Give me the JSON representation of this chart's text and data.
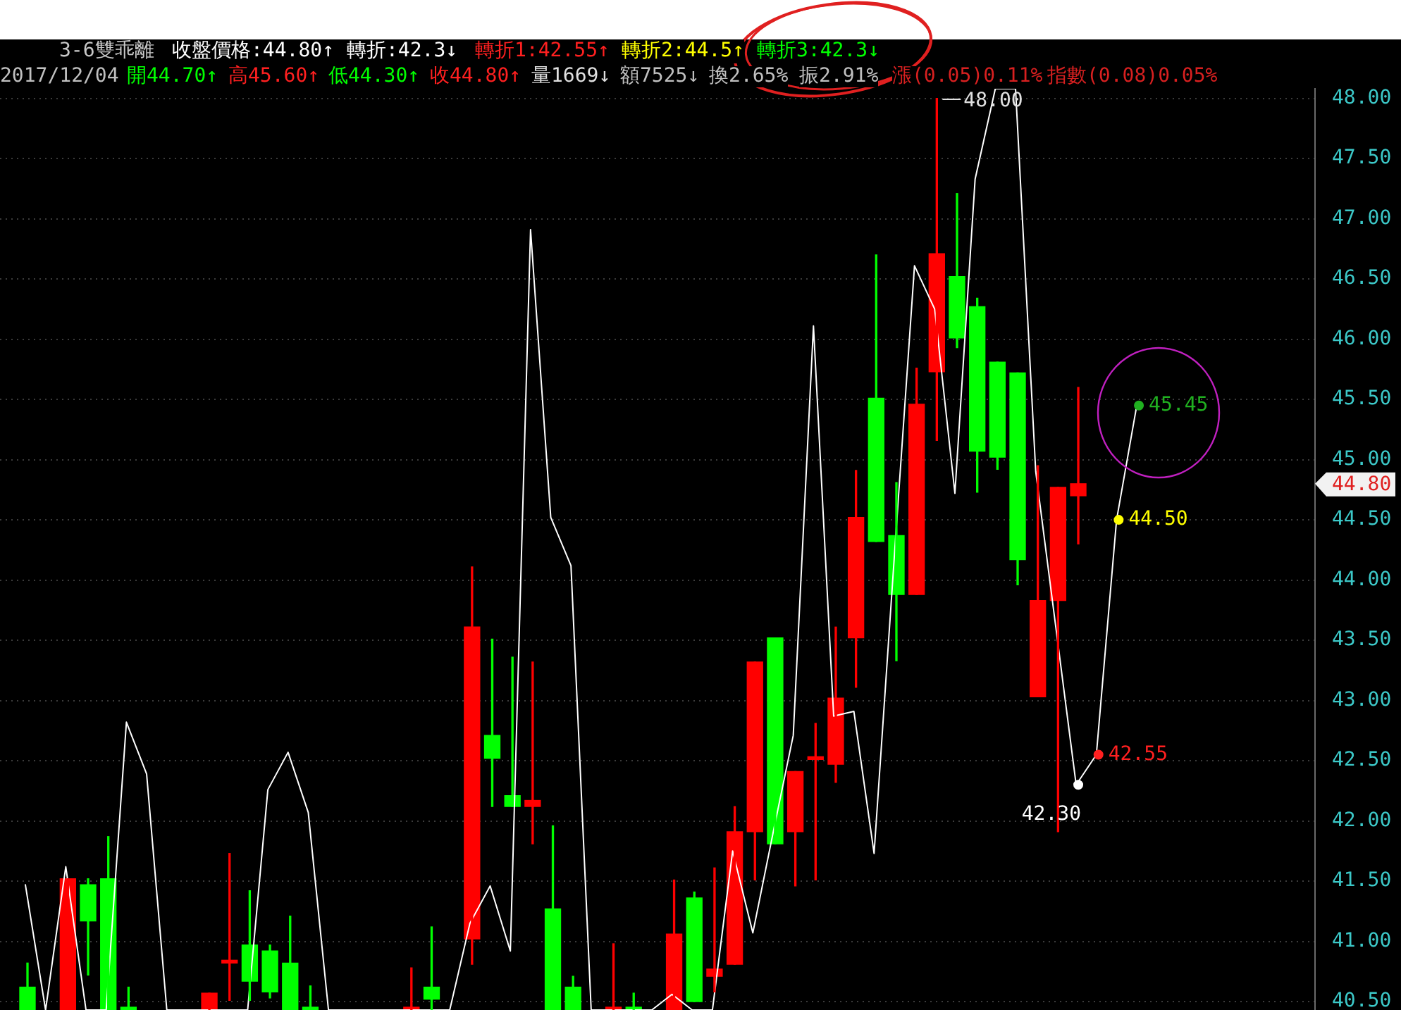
{
  "chart_data": {
    "type": "candlestick",
    "title": "3-6雙乖離",
    "annotations": [
      "收盤價格:44.80↑",
      "轉折:42.3↓",
      "轉折1:42.55↑",
      "轉折2:44.5↑",
      "轉折3:42.3↓",
      "2017/12/04",
      "開44.70↑",
      "高45.60↑",
      "低44.30↑",
      "收44.80↑",
      "量1669↓",
      "額7525↓",
      "換2.65%",
      "振2.91%",
      "漲(0.05)0.11%",
      "指數(0.08)0.05%",
      "44.80",
      {
        "text": "48.00",
        "y": 48.0
      }
    ],
    "categories": [
      null,
      null,
      null,
      null,
      null,
      null,
      null,
      null,
      null,
      null,
      null,
      null,
      null,
      null,
      null,
      null,
      null,
      null,
      null,
      null,
      null,
      null,
      null,
      null,
      null,
      null,
      null,
      null,
      null,
      null,
      null,
      null,
      null,
      null,
      null,
      null,
      null,
      null,
      null,
      null,
      null,
      null,
      null,
      null,
      null,
      null,
      null,
      null,
      null,
      null,
      null,
      null,
      null,
      null,
      null,
      null
    ],
    "ohlc": [
      [
        40.62,
        40.82,
        40.43,
        40.43
      ],
      null,
      [
        40.43,
        41.52,
        40.43,
        41.52
      ],
      [
        41.47,
        41.52,
        40.72,
        41.17
      ],
      [
        41.52,
        41.87,
        40.43,
        40.43
      ],
      [
        40.43,
        40.62,
        40.43,
        40.43
      ],
      null,
      null,
      null,
      [
        40.43,
        40.57,
        40.43,
        40.57
      ],
      [
        40.82,
        41.73,
        40.51,
        40.82
      ],
      [
        40.97,
        41.42,
        40.51,
        40.67
      ],
      [
        40.92,
        40.97,
        40.53,
        40.58
      ],
      [
        40.82,
        41.21,
        40.43,
        40.43
      ],
      [
        40.43,
        40.63,
        40.43,
        40.43
      ],
      null,
      null,
      null,
      null,
      [
        40.43,
        40.78,
        40.43,
        40.43
      ],
      [
        40.62,
        41.12,
        40.43,
        40.52
      ],
      null,
      [
        41.02,
        44.11,
        40.81,
        43.61
      ],
      [
        42.71,
        43.51,
        42.12,
        42.52
      ],
      [
        42.21,
        43.36,
        42.12,
        42.12
      ],
      [
        42.12,
        43.32,
        41.81,
        42.17
      ],
      [
        41.27,
        41.96,
        40.43,
        40.43
      ],
      [
        40.62,
        40.71,
        40.43,
        40.43
      ],
      null,
      [
        40.43,
        40.98,
        40.43,
        40.43
      ],
      [
        40.43,
        40.57,
        40.43,
        40.43
      ],
      null,
      [
        40.43,
        41.51,
        40.43,
        41.06
      ],
      [
        41.36,
        41.41,
        40.5,
        40.5
      ],
      [
        40.71,
        41.61,
        40.58,
        40.77
      ],
      [
        40.81,
        42.12,
        40.81,
        41.91
      ],
      [
        41.91,
        43.32,
        41.51,
        43.32
      ],
      [
        43.52,
        43.52,
        41.81,
        41.81
      ],
      [
        41.91,
        42.41,
        41.46,
        42.41
      ],
      [
        42.51,
        42.81,
        41.51,
        42.51
      ],
      [
        42.47,
        43.61,
        42.32,
        43.02
      ],
      [
        43.52,
        44.91,
        43.11,
        44.52
      ],
      [
        45.51,
        46.7,
        44.32,
        44.32
      ],
      [
        44.37,
        44.81,
        43.33,
        43.88
      ],
      [
        43.88,
        45.76,
        43.88,
        45.46
      ],
      [
        45.73,
        48.0,
        45.16,
        46.71
      ],
      [
        46.52,
        47.21,
        45.93,
        46.01
      ],
      [
        46.27,
        46.34,
        44.73,
        45.07
      ],
      [
        45.81,
        45.81,
        44.92,
        45.02
      ],
      [
        45.72,
        45.72,
        43.96,
        44.17
      ],
      [
        43.03,
        44.95,
        43.03,
        43.83
      ],
      [
        43.83,
        44.77,
        41.91,
        44.77
      ],
      [
        44.7,
        45.6,
        44.3,
        44.8
      ],
      null,
      null,
      null
    ],
    "colors": [
      "#00ff00",
      null,
      "#ff0000",
      "#00ff00",
      "#00ff00",
      "#00ff00",
      null,
      null,
      null,
      "#ff0000",
      "#ff0000",
      "#00ff00",
      "#00ff00",
      "#00ff00",
      "#00ff00",
      null,
      null,
      null,
      null,
      "#ff0000",
      "#00ff00",
      null,
      "#ff0000",
      "#00ff00",
      "#00ff00",
      "#ff0000",
      "#00ff00",
      "#00ff00",
      null,
      "#ff0000",
      "#00ff00",
      null,
      "#ff0000",
      "#00ff00",
      "#ff0000",
      "#ff0000",
      "#ff0000",
      "#00ff00",
      "#ff0000",
      "#ff0000",
      "#ff0000",
      "#ff0000",
      "#00ff00",
      "#00ff00",
      "#ff0000",
      "#ff0000",
      "#00ff00",
      "#00ff00",
      "#00ff00",
      "#00ff00",
      "#ff0000",
      "#ff0000",
      "#ff0000",
      null,
      null,
      null
    ],
    "series": [
      {
        "type": "line",
        "color": "#ffffff",
        "values": [
          41.47,
          40.43,
          41.62,
          40.43,
          40.43,
          42.82,
          42.39,
          40.43,
          40.43,
          40.43,
          40.43,
          40.43,
          42.26,
          42.57,
          42.07,
          40.43,
          40.43,
          40.43,
          40.43,
          40.43,
          40.43,
          40.43,
          41.15,
          41.46,
          40.92,
          46.91,
          44.52,
          44.12,
          40.43,
          40.43,
          40.43,
          40.43,
          40.56,
          40.43,
          40.43,
          41.75,
          41.07,
          41.9,
          42.71,
          46.11,
          42.87,
          42.91,
          41.73,
          44.19,
          46.61,
          46.25,
          44.72,
          47.33,
          48.08,
          48.08,
          44.9,
          43.6,
          42.3,
          42.55,
          44.5,
          45.45
        ]
      },
      {
        "type": "scatter",
        "marker": "circle",
        "values": [
          null,
          null,
          null,
          null,
          null,
          null,
          null,
          null,
          null,
          null,
          null,
          null,
          null,
          null,
          null,
          null,
          null,
          null,
          null,
          null,
          null,
          null,
          null,
          null,
          null,
          null,
          null,
          null,
          null,
          null,
          null,
          null,
          null,
          null,
          null,
          null,
          null,
          null,
          null,
          null,
          null,
          null,
          null,
          null,
          null,
          null,
          null,
          null,
          null,
          null,
          null,
          null,
          42.3,
          42.55,
          44.5,
          45.45
        ],
        "colors": [
          null,
          null,
          null,
          null,
          null,
          null,
          null,
          null,
          null,
          null,
          null,
          null,
          null,
          null,
          null,
          null,
          null,
          null,
          null,
          null,
          null,
          null,
          null,
          null,
          null,
          null,
          null,
          null,
          null,
          null,
          null,
          null,
          null,
          null,
          null,
          null,
          null,
          null,
          null,
          null,
          null,
          null,
          null,
          null,
          null,
          null,
          null,
          null,
          null,
          null,
          null,
          null,
          "#ffffff",
          "#ff2020",
          "#ffff00",
          "#20b020"
        ],
        "value_labels": [
          null,
          null,
          null,
          null,
          null,
          null,
          null,
          null,
          null,
          null,
          null,
          null,
          null,
          null,
          null,
          null,
          null,
          null,
          null,
          null,
          null,
          null,
          null,
          null,
          null,
          null,
          null,
          null,
          null,
          null,
          null,
          null,
          null,
          null,
          null,
          null,
          null,
          null,
          null,
          null,
          null,
          null,
          null,
          null,
          null,
          null,
          null,
          null,
          null,
          null,
          null,
          null,
          "42.30",
          "42.55",
          "44.50",
          "45.45"
        ]
      }
    ],
    "ylim": [
      40.43,
      48.08
    ],
    "yticks": [
      {
        "value": 40.5,
        "label": "40.50"
      },
      {
        "value": 41,
        "label": "41.00"
      },
      {
        "value": 41.5,
        "label": "41.50"
      },
      {
        "value": 42,
        "label": "42.00"
      },
      {
        "value": 42.5,
        "label": "42.50"
      },
      {
        "value": 43,
        "label": "43.00"
      },
      {
        "value": 43.5,
        "label": "43.50"
      },
      {
        "value": 44,
        "label": "44.00"
      },
      {
        "value": 44.5,
        "label": "44.50"
      },
      {
        "value": 45,
        "label": "45.00"
      },
      {
        "value": 45.5,
        "label": "45.50"
      },
      {
        "value": 46,
        "label": "46.00"
      },
      {
        "value": 46.5,
        "label": "46.50"
      },
      {
        "value": 47,
        "label": "47.00"
      },
      {
        "value": 47.5,
        "label": "47.50"
      },
      {
        "value": 48,
        "label": "48.00"
      }
    ],
    "grid": "y",
    "tick_labels": "y"
  }
}
